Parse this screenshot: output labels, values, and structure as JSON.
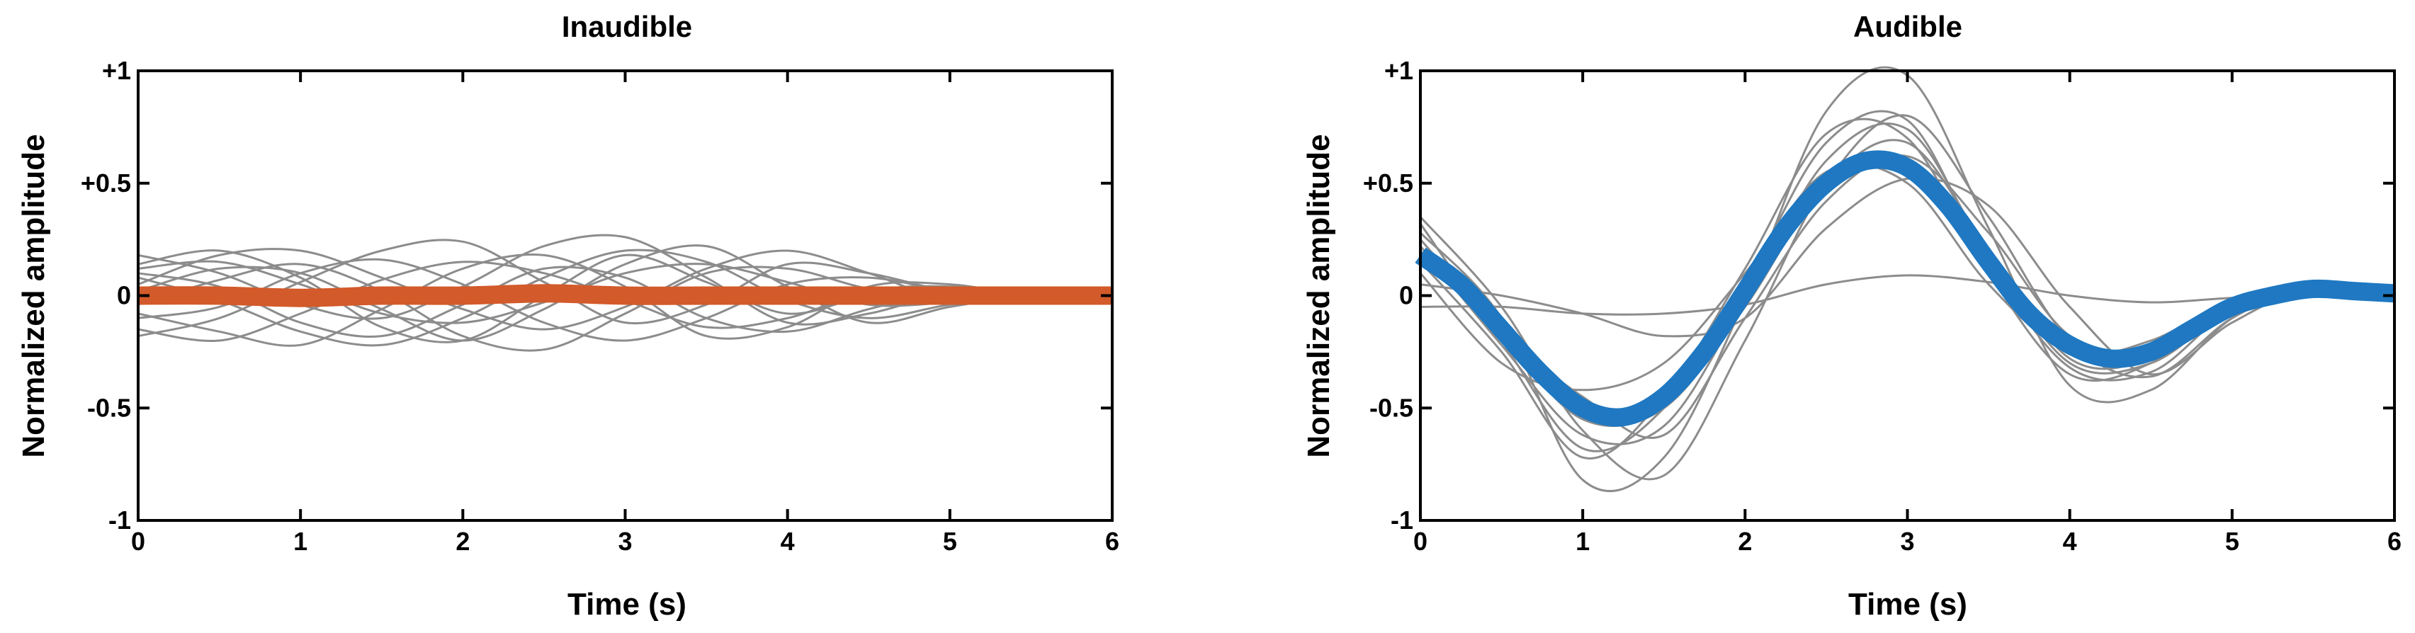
{
  "chart_data": [
    {
      "type": "line",
      "title": "Inaudible",
      "xlabel": "Time (s)",
      "ylabel": "Normalized amplitude",
      "xlim": [
        0,
        6
      ],
      "ylim": [
        -1,
        1
      ],
      "x_ticks": [
        "0",
        "1",
        "2",
        "3",
        "4",
        "5",
        "6"
      ],
      "y_ticks": [
        "-1",
        "-0.5",
        "0",
        "+0.5",
        "+1"
      ],
      "grid": false,
      "mean_color": "#d35a2a",
      "trace_color": "#8c8c8c",
      "mean": {
        "name": "mean",
        "x": [
          0,
          0.5,
          1,
          1.5,
          2,
          2.5,
          3,
          3.5,
          4,
          4.5,
          5,
          5.5,
          6
        ],
        "y": [
          0.0,
          0.0,
          -0.01,
          0.0,
          0.0,
          0.01,
          0.0,
          0.0,
          0.0,
          0.0,
          0.0,
          0.0,
          0.0
        ]
      },
      "traces": [
        {
          "x": [
            0,
            0.5,
            1,
            1.5,
            2,
            2.5,
            3,
            3.5,
            4,
            4.5,
            5,
            5.5,
            6
          ],
          "y": [
            0.12,
            0.15,
            0.05,
            -0.08,
            -0.12,
            -0.03,
            0.1,
            0.14,
            0.06,
            -0.04,
            -0.03,
            0,
            0
          ]
        },
        {
          "x": [
            0,
            0.5,
            1,
            1.5,
            2,
            2.5,
            3,
            3.5,
            4,
            4.5,
            5,
            5.5,
            6
          ],
          "y": [
            -0.1,
            -0.05,
            0.1,
            0.16,
            0.05,
            -0.12,
            -0.2,
            -0.1,
            0.05,
            0.08,
            0.02,
            0,
            0
          ]
        },
        {
          "x": [
            0,
            0.5,
            1,
            1.5,
            2,
            2.5,
            3,
            3.5,
            4,
            4.5,
            5,
            5.5,
            6
          ],
          "y": [
            0.05,
            0.18,
            0.2,
            0.08,
            -0.06,
            -0.15,
            -0.05,
            0.12,
            0.2,
            0.1,
            -0.02,
            0,
            0
          ]
        },
        {
          "x": [
            0,
            0.5,
            1,
            1.5,
            2,
            2.5,
            3,
            3.5,
            4,
            4.5,
            5,
            5.5,
            6
          ],
          "y": [
            -0.15,
            -0.2,
            -0.08,
            0.07,
            0.15,
            0.1,
            -0.02,
            -0.14,
            -0.1,
            0.02,
            0.04,
            0,
            0
          ]
        },
        {
          "x": [
            0,
            0.5,
            1,
            1.5,
            2,
            2.5,
            3,
            3.5,
            4,
            4.5,
            5,
            5.5,
            6
          ],
          "y": [
            0.08,
            -0.02,
            -0.16,
            -0.22,
            -0.1,
            0.08,
            0.2,
            0.15,
            -0.02,
            -0.1,
            -0.04,
            0,
            0
          ]
        },
        {
          "x": [
            0,
            0.5,
            1,
            1.5,
            2,
            2.5,
            3,
            3.5,
            4,
            4.5,
            5,
            5.5,
            6
          ],
          "y": [
            0.18,
            0.1,
            -0.04,
            -0.1,
            0.04,
            0.22,
            0.26,
            0.08,
            -0.12,
            -0.08,
            0.01,
            0,
            0
          ]
        },
        {
          "x": [
            0,
            0.5,
            1,
            1.5,
            2,
            2.5,
            3,
            3.5,
            4,
            4.5,
            5,
            5.5,
            6
          ],
          "y": [
            -0.04,
            0.07,
            0.14,
            0.02,
            -0.18,
            -0.24,
            -0.08,
            0.1,
            0.12,
            0.03,
            -0.01,
            0,
            0
          ]
        },
        {
          "x": [
            0,
            0.5,
            1,
            1.5,
            2,
            2.5,
            3,
            3.5,
            4,
            4.5,
            5,
            5.5,
            6
          ],
          "y": [
            0.1,
            0.04,
            -0.12,
            -0.18,
            -0.04,
            0.12,
            0.08,
            -0.1,
            -0.16,
            -0.06,
            0.02,
            0,
            0
          ]
        },
        {
          "x": [
            0,
            0.5,
            1,
            1.5,
            2,
            2.5,
            3,
            3.5,
            4,
            4.5,
            5,
            5.5,
            6
          ],
          "y": [
            -0.18,
            -0.1,
            0.06,
            0.2,
            0.24,
            0.06,
            -0.12,
            -0.04,
            0.14,
            0.1,
            0.02,
            0,
            0
          ]
        },
        {
          "x": [
            0,
            0.5,
            1,
            1.5,
            2,
            2.5,
            3,
            3.5,
            4,
            4.5,
            5,
            5.5,
            6
          ],
          "y": [
            0.02,
            0.12,
            0.1,
            -0.06,
            -0.2,
            -0.06,
            0.14,
            0.22,
            0.04,
            -0.12,
            -0.05,
            0,
            0
          ]
        },
        {
          "x": [
            0,
            0.5,
            1,
            1.5,
            2,
            2.5,
            3,
            3.5,
            4,
            4.5,
            5,
            5.5,
            6
          ],
          "y": [
            -0.08,
            -0.16,
            -0.22,
            -0.06,
            0.12,
            0.18,
            0.04,
            -0.18,
            -0.14,
            0.04,
            0.05,
            0,
            0
          ]
        },
        {
          "x": [
            0,
            0.5,
            1,
            1.5,
            2,
            2.5,
            3,
            3.5,
            4,
            4.5,
            5,
            5.5,
            6
          ],
          "y": [
            0.14,
            0.2,
            0.08,
            -0.14,
            -0.2,
            0.0,
            0.18,
            0.06,
            -0.08,
            0.0,
            0.01,
            0,
            0
          ]
        }
      ]
    },
    {
      "type": "line",
      "title": "Audible",
      "xlabel": "Time (s)",
      "ylabel": "Normalized amplitude",
      "xlim": [
        0,
        6
      ],
      "ylim": [
        -1,
        1
      ],
      "x_ticks": [
        "0",
        "1",
        "2",
        "3",
        "4",
        "5",
        "6"
      ],
      "y_ticks": [
        "-1",
        "-0.5",
        "0",
        "+0.5",
        "+1"
      ],
      "grid": false,
      "mean_color": "#1f78c1",
      "trace_color": "#8c8c8c",
      "mean": {
        "name": "mean",
        "x": [
          0,
          0.25,
          0.5,
          0.75,
          1.0,
          1.25,
          1.5,
          1.75,
          2.0,
          2.25,
          2.5,
          2.75,
          3.0,
          3.25,
          3.5,
          3.75,
          4.0,
          4.25,
          4.5,
          4.75,
          5.0,
          5.25,
          5.5,
          5.75,
          6.0
        ],
        "y": [
          0.18,
          0.05,
          -0.15,
          -0.35,
          -0.5,
          -0.54,
          -0.45,
          -0.25,
          0.02,
          0.3,
          0.5,
          0.6,
          0.57,
          0.4,
          0.15,
          -0.08,
          -0.22,
          -0.28,
          -0.25,
          -0.15,
          -0.05,
          0.0,
          0.03,
          0.02,
          0.01
        ]
      },
      "traces": [
        {
          "x": [
            0,
            0.5,
            1,
            1.5,
            2,
            2.5,
            3,
            3.5,
            4,
            4.5,
            5,
            5.5,
            6
          ],
          "y": [
            0.32,
            -0.2,
            -0.68,
            -0.5,
            0.05,
            0.68,
            0.78,
            0.15,
            -0.32,
            -0.34,
            -0.06,
            0.03,
            0.01
          ]
        },
        {
          "x": [
            0,
            0.5,
            1,
            1.5,
            2,
            2.5,
            3,
            3.5,
            4,
            4.5,
            5,
            5.5,
            6
          ],
          "y": [
            0.1,
            -0.3,
            -0.42,
            -0.3,
            0.1,
            0.55,
            0.5,
            0.05,
            -0.25,
            -0.2,
            -0.02,
            0.02,
            0.01
          ]
        },
        {
          "x": [
            0,
            0.5,
            1,
            1.5,
            2,
            2.5,
            3,
            3.5,
            4,
            4.5,
            5,
            5.5,
            6
          ],
          "y": [
            0.28,
            -0.1,
            -0.82,
            -0.72,
            -0.02,
            0.82,
            0.98,
            0.3,
            -0.4,
            -0.42,
            -0.1,
            0.04,
            0.01
          ]
        },
        {
          "x": [
            0,
            0.5,
            1,
            1.5,
            2,
            2.5,
            3,
            3.5,
            4,
            4.5,
            5,
            5.5,
            6
          ],
          "y": [
            0.2,
            -0.18,
            -0.55,
            -0.5,
            -0.05,
            0.5,
            0.68,
            0.2,
            -0.28,
            -0.28,
            -0.05,
            0.03,
            0.01
          ]
        },
        {
          "x": [
            0,
            0.5,
            1,
            1.5,
            2,
            2.5,
            3,
            3.5,
            4,
            4.5,
            5,
            5.5,
            6
          ],
          "y": [
            -0.05,
            -0.05,
            -0.08,
            -0.08,
            -0.04,
            0.05,
            0.09,
            0.06,
            0.0,
            -0.03,
            -0.01,
            0.0,
            0.0
          ]
        },
        {
          "x": [
            0,
            0.5,
            1,
            1.5,
            2,
            2.5,
            3,
            3.5,
            4,
            4.5,
            5,
            5.5,
            6
          ],
          "y": [
            0.35,
            -0.05,
            -0.6,
            -0.8,
            -0.2,
            0.5,
            0.8,
            0.35,
            -0.2,
            -0.36,
            -0.1,
            0.05,
            0.01
          ]
        },
        {
          "x": [
            0,
            0.5,
            1,
            1.5,
            2,
            2.5,
            3,
            3.5,
            4,
            4.5,
            5,
            5.5,
            6
          ],
          "y": [
            0.15,
            -0.25,
            -0.72,
            -0.45,
            0.12,
            0.72,
            0.7,
            0.1,
            -0.35,
            -0.3,
            -0.04,
            0.02,
            0.01
          ]
        },
        {
          "x": [
            0,
            0.5,
            1,
            1.5,
            2,
            2.5,
            3,
            3.5,
            4,
            4.5,
            5,
            5.5,
            6
          ],
          "y": [
            0.25,
            -0.15,
            -0.45,
            -0.62,
            -0.1,
            0.42,
            0.62,
            0.28,
            -0.18,
            -0.26,
            -0.06,
            0.03,
            0.01
          ]
        },
        {
          "x": [
            0,
            0.5,
            1,
            1.5,
            2,
            2.5,
            3,
            3.5,
            4,
            4.5,
            5,
            5.5,
            6
          ],
          "y": [
            0.05,
            0.0,
            -0.08,
            -0.18,
            -0.1,
            0.3,
            0.52,
            0.4,
            -0.05,
            -0.35,
            -0.12,
            0.04,
            0.01
          ]
        },
        {
          "x": [
            0,
            0.5,
            1,
            1.5,
            2,
            2.5,
            3,
            3.5,
            4,
            4.5,
            5,
            5.5,
            6
          ],
          "y": [
            0.22,
            -0.22,
            -0.62,
            -0.58,
            -0.02,
            0.6,
            0.74,
            0.18,
            -0.3,
            -0.3,
            -0.06,
            0.03,
            0.01
          ]
        }
      ]
    }
  ]
}
